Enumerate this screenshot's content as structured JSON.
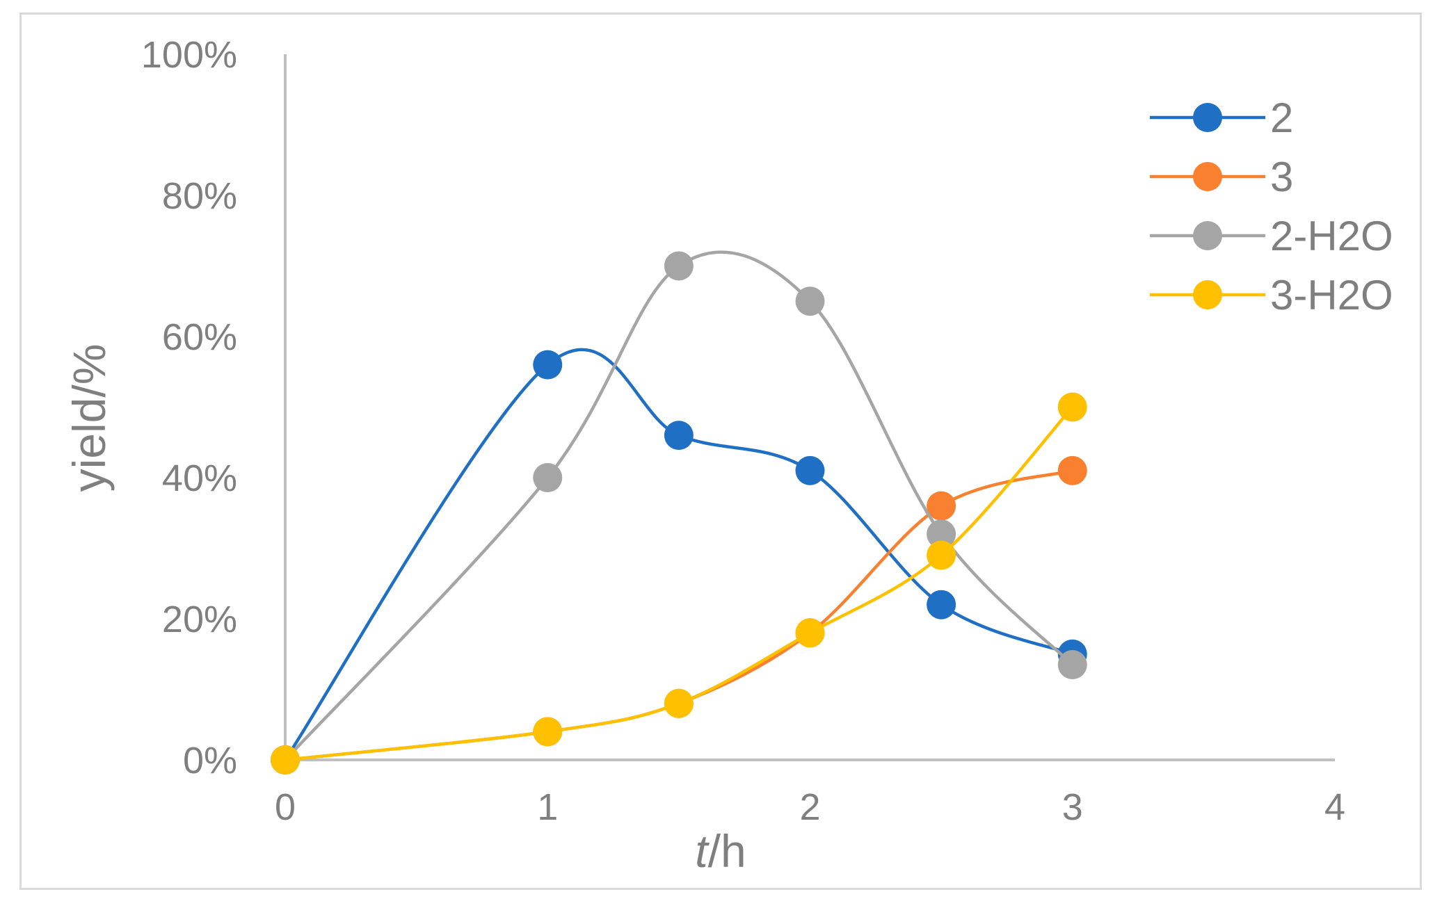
{
  "chart_data": {
    "type": "line",
    "xlabel_italic": "t",
    "xlabel_rest": "/h",
    "ylabel": "yield/%",
    "xlim": [
      0,
      4
    ],
    "ylim": [
      0,
      100
    ],
    "x_ticks": [
      "0",
      "1",
      "2",
      "3",
      "4"
    ],
    "y_ticks": [
      "0%",
      "20%",
      "40%",
      "60%",
      "80%",
      "100%"
    ],
    "grid": false,
    "smoothed": true,
    "legend_position": "top-right",
    "axis_color": "#bfbfbf",
    "series": [
      {
        "name": "2",
        "color": "#1f6fc4",
        "x": [
          0,
          1,
          1.5,
          2,
          2.5,
          3
        ],
        "y": [
          0,
          56,
          46,
          41,
          22,
          15
        ]
      },
      {
        "name": "3",
        "color": "#f8802e",
        "x": [
          0,
          1,
          1.5,
          2,
          2.5,
          3
        ],
        "y": [
          0,
          4,
          8,
          18,
          36,
          41
        ]
      },
      {
        "name": "2-H2O",
        "color": "#a5a5a5",
        "x": [
          0,
          1,
          1.5,
          2,
          2.5,
          3
        ],
        "y": [
          0,
          40,
          70,
          65,
          32,
          13.5
        ]
      },
      {
        "name": "3-H2O",
        "color": "#ffc000",
        "x": [
          0,
          1,
          1.5,
          2,
          2.5,
          3
        ],
        "y": [
          0,
          4,
          8,
          18,
          29,
          50
        ]
      }
    ]
  }
}
